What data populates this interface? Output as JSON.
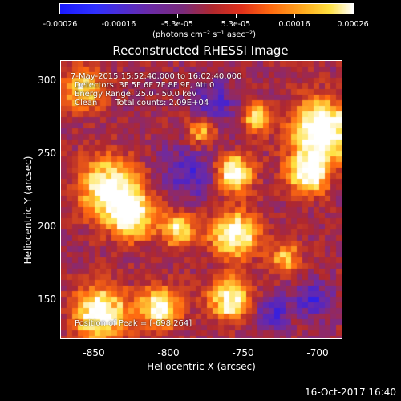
{
  "colorbar": {
    "ticks": [
      "-0.00026",
      "-0.00016",
      "-5.3e-05",
      "5.3e-05",
      "0.00016",
      "0.00026"
    ],
    "unit_label": "(photons cm⁻² s⁻¹ asec⁻²)",
    "colors": [
      "#1a1aff",
      "#6a2aa8",
      "#b0282e",
      "#ff6a10",
      "#ffe040",
      "#ffffff"
    ]
  },
  "image": {
    "title": "Reconstructed RHESSI Image",
    "time_range": "7-May-2015 15:52:40.000 to 16:02:40.000",
    "detectors": "Detectors: 3F 5F 6F 7F 8F 9F, Att 0",
    "energy_range": "Energy Range: 25.0 - 50.0 keV",
    "algorithm": "Clean",
    "total_counts": "Total counts: 2.09E+04",
    "peak_position": "Position of Peak = [-698,264]"
  },
  "chart_data": {
    "type": "heatmap",
    "xlabel": "Heliocentric X (arcsec)",
    "ylabel": "Heliocentric Y (arcsec)",
    "x_ticks": [
      "-850",
      "-800",
      "-750",
      "-700"
    ],
    "y_ticks": [
      "300",
      "250",
      "200",
      "150"
    ],
    "xlim": [
      -876,
      -688
    ],
    "ylim": [
      122,
      313
    ],
    "color_range": [
      -0.00026,
      0.00026
    ],
    "peak": [
      -698,
      264
    ]
  },
  "footer": {
    "timestamp": "16-Oct-2017 16:40"
  }
}
